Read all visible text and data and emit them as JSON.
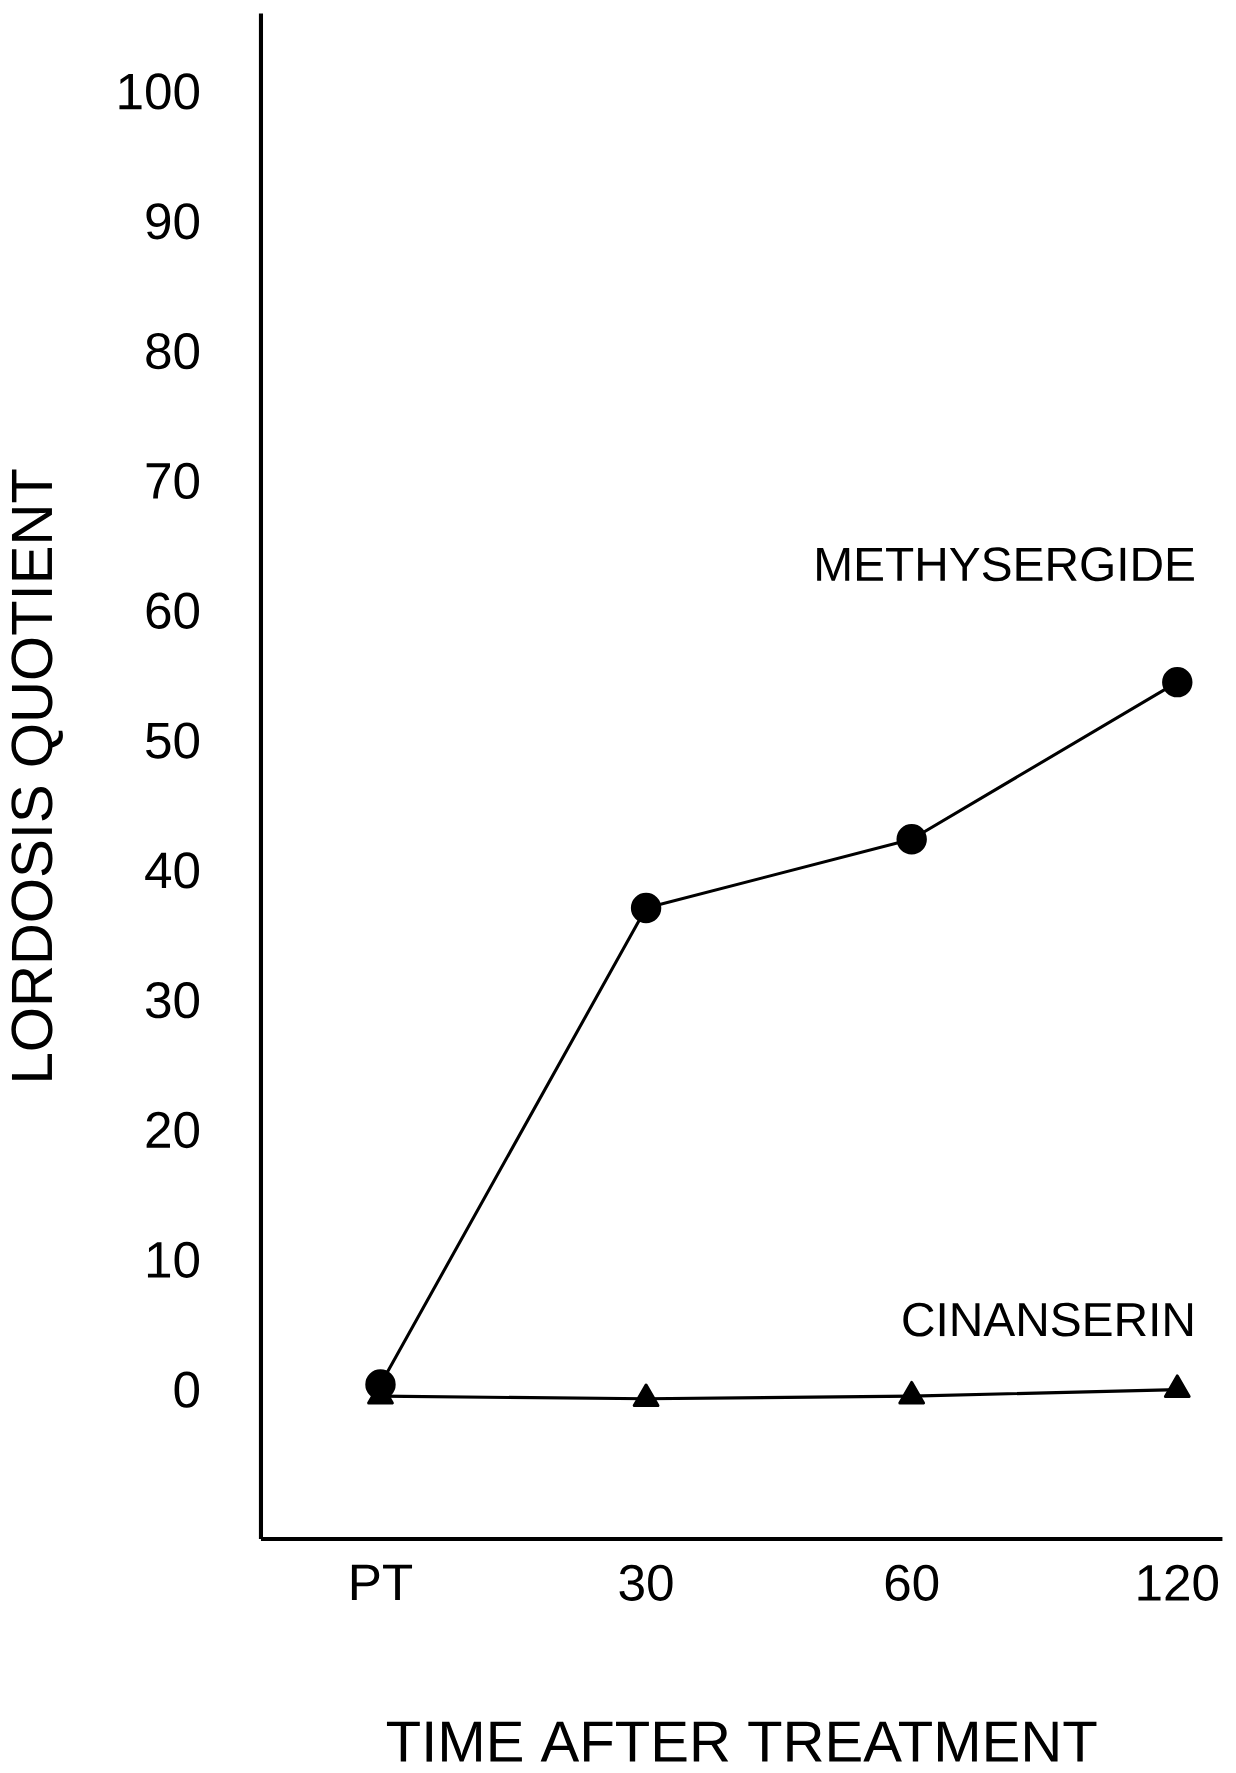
{
  "chart_data": {
    "type": "line",
    "xlabel": "TIME AFTER TREATMENT",
    "ylabel": "LORDOSIS QUOTIENT",
    "categories": [
      "PT",
      "30",
      "60",
      "120"
    ],
    "ylim": [
      -11.5,
      106
    ],
    "yticks": [
      0,
      10,
      20,
      30,
      40,
      50,
      60,
      70,
      80,
      90,
      100
    ],
    "grid": false,
    "legend": false,
    "series": [
      {
        "name": "METHYSERGIDE",
        "color": "#000000",
        "marker": "circle",
        "values": [
          0.4,
          37.1,
          42.4,
          54.5
        ]
      },
      {
        "name": "CINANSERIN",
        "color": "#000000",
        "marker": "triangle",
        "values": [
          -0.5,
          -0.7,
          -0.5,
          0
        ]
      }
    ]
  }
}
